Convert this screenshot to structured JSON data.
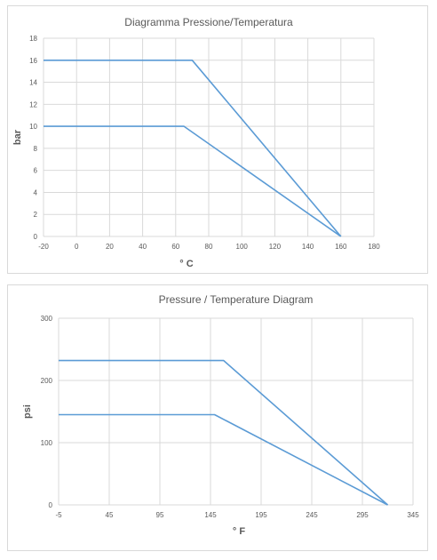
{
  "colors": {
    "series": "#5b9bd5",
    "grid": "#d9d9d9",
    "text": "#595959"
  },
  "chart_data": [
    {
      "type": "line",
      "title": "Diagramma Pressione/Temperatura",
      "xlabel": "° C",
      "ylabel": "bar",
      "xlim": [
        -20,
        180
      ],
      "ylim": [
        0,
        18
      ],
      "xticks": [
        -20,
        0,
        20,
        40,
        60,
        80,
        100,
        120,
        140,
        160,
        180
      ],
      "yticks": [
        0,
        2,
        4,
        6,
        8,
        10,
        12,
        14,
        16,
        18
      ],
      "tick_labels_x": [
        "-20",
        "0",
        "20",
        "40",
        "60",
        "80",
        "100",
        "120",
        "140",
        "160",
        "180"
      ],
      "tick_labels_y": [
        "0",
        "2",
        "4",
        "6",
        "8",
        "10",
        "12",
        "14",
        "16",
        "18"
      ],
      "grid": true,
      "legend": "none",
      "series": [
        {
          "x": [
            -20,
            70,
            160
          ],
          "y": [
            16,
            16,
            0
          ]
        },
        {
          "x": [
            -20,
            65,
            160
          ],
          "y": [
            10,
            10,
            0
          ]
        }
      ]
    },
    {
      "type": "line",
      "title": "Pressure / Temperature Diagram",
      "xlabel": "° F",
      "ylabel": "psi",
      "xlim": [
        -5,
        345
      ],
      "ylim": [
        0,
        300
      ],
      "xticks": [
        -5,
        45,
        95,
        145,
        195,
        245,
        295,
        345
      ],
      "yticks": [
        0,
        100,
        200,
        300
      ],
      "tick_labels_x": [
        "-5",
        "45",
        "95",
        "145",
        "195",
        "245",
        "295",
        "345"
      ],
      "tick_labels_y": [
        "0",
        "100",
        "200",
        "300"
      ],
      "grid": true,
      "legend": "none",
      "series": [
        {
          "x": [
            -5,
            158,
            320
          ],
          "y": [
            232,
            232,
            0
          ]
        },
        {
          "x": [
            -5,
            149,
            320
          ],
          "y": [
            145,
            145,
            0
          ]
        }
      ]
    }
  ]
}
